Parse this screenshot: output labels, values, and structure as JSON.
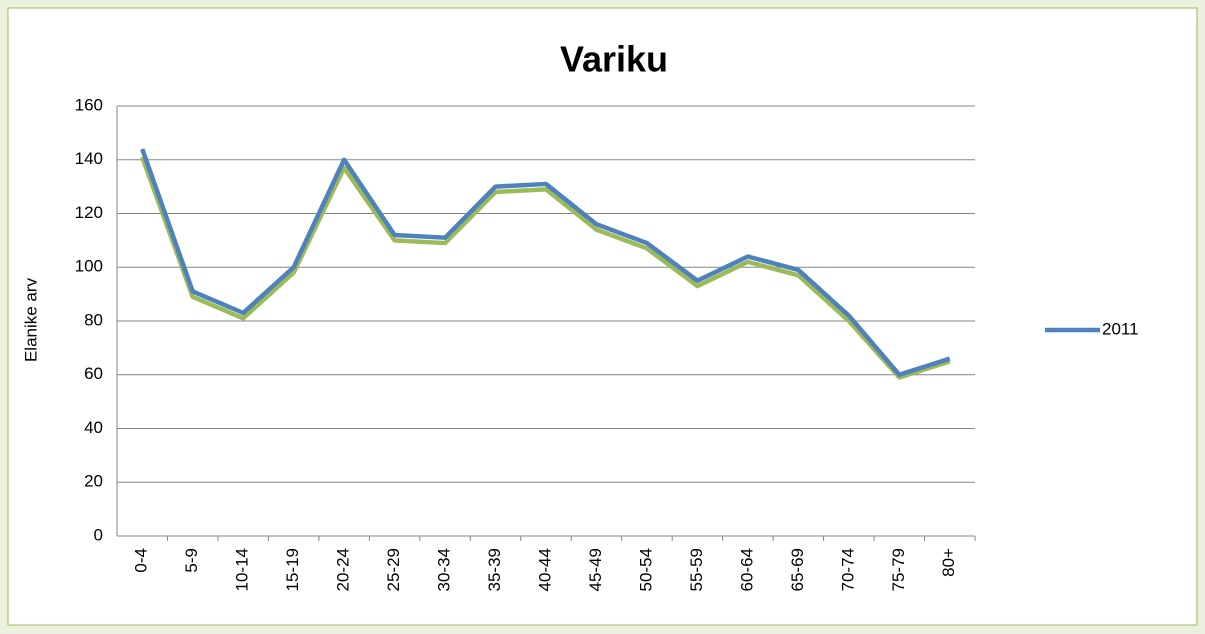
{
  "chart_data": {
    "type": "line",
    "title": "Variku",
    "y_label": "Elanike arv",
    "categories": [
      "0-4",
      "5-9",
      "10-14",
      "15-19",
      "20-24",
      "25-29",
      "30-34",
      "35-39",
      "40-44",
      "45-49",
      "50-54",
      "55-59",
      "60-64",
      "65-69",
      "70-74",
      "75-79",
      "80+"
    ],
    "series": [
      {
        "color": "#9bbb59",
        "values": [
          141,
          89,
          81,
          98,
          137,
          110,
          109,
          128,
          129,
          114,
          107,
          93,
          102,
          97,
          80,
          59,
          65
        ]
      },
      {
        "name": "2011",
        "color": "#4f81bd",
        "values": [
          144,
          91,
          83,
          100,
          140,
          112,
          111,
          130,
          131,
          116,
          109,
          95,
          104,
          99,
          82,
          60,
          66
        ]
      }
    ],
    "ylim": [
      0,
      160
    ],
    "yticks": [
      0,
      20,
      40,
      60,
      80,
      100,
      120,
      140,
      160
    ],
    "grid": true,
    "legend": "right"
  }
}
